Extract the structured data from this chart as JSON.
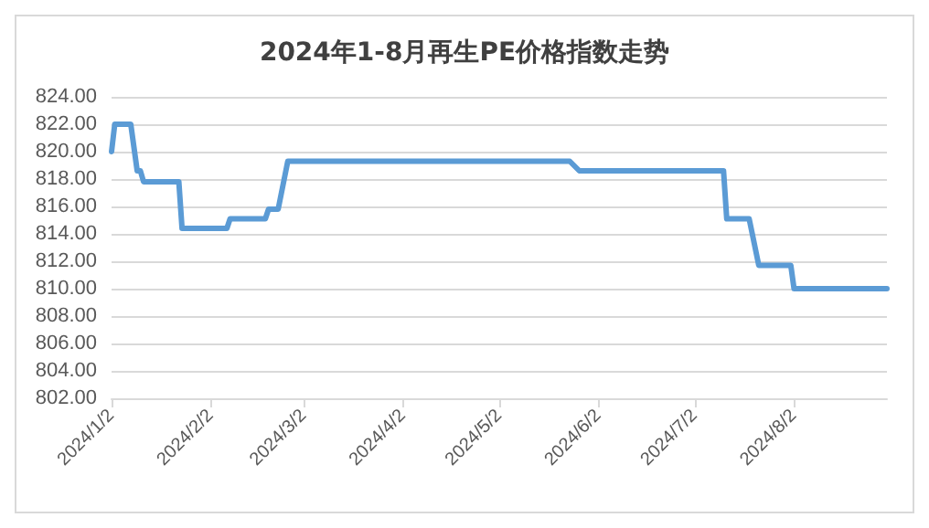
{
  "chart_data": {
    "type": "step",
    "title": "2024年1-8月再生PE价格指数走势",
    "x": [
      "2024-01-02",
      "2024-01-03",
      "2024-01-08",
      "2024-01-10",
      "2024-01-11",
      "2024-01-12",
      "2024-01-23",
      "2024-01-24",
      "2024-02-07",
      "2024-02-08",
      "2024-02-19",
      "2024-02-20",
      "2024-02-23",
      "2024-02-26",
      "2024-05-24",
      "2024-05-27",
      "2024-07-11",
      "2024-07-12",
      "2024-07-19",
      "2024-07-22",
      "2024-08-01",
      "2024-08-02",
      "2024-08-31"
    ],
    "series": [
      {
        "color": "#5b9bd5",
        "values": [
          820.0,
          822.0,
          822.0,
          818.6,
          818.6,
          817.8,
          817.8,
          814.4,
          814.4,
          815.1,
          815.1,
          815.8,
          815.8,
          819.3,
          819.3,
          818.6,
          818.6,
          815.1,
          815.1,
          811.7,
          811.7,
          810.0,
          810.0
        ]
      }
    ],
    "xlim": [
      "2024-01-02",
      "2024-08-31"
    ],
    "xticks": [
      {
        "value": "2024-01-02",
        "label": "2024/1/2"
      },
      {
        "value": "2024-02-02",
        "label": "2024/2/2"
      },
      {
        "value": "2024-03-02",
        "label": "2024/3/2"
      },
      {
        "value": "2024-04-02",
        "label": "2024/4/2"
      },
      {
        "value": "2024-05-02",
        "label": "2024/5/2"
      },
      {
        "value": "2024-06-02",
        "label": "2024/6/2"
      },
      {
        "value": "2024-07-02",
        "label": "2024/7/2"
      },
      {
        "value": "2024-08-02",
        "label": "2024/8/2"
      }
    ],
    "ylim": [
      802,
      824
    ],
    "yticks": [
      {
        "value": 802,
        "label": "802.00"
      },
      {
        "value": 804,
        "label": "804.00"
      },
      {
        "value": 806,
        "label": "806.00"
      },
      {
        "value": 808,
        "label": "808.00"
      },
      {
        "value": 810,
        "label": "810.00"
      },
      {
        "value": 812,
        "label": "812.00"
      },
      {
        "value": 814,
        "label": "814.00"
      },
      {
        "value": 816,
        "label": "816.00"
      },
      {
        "value": 818,
        "label": "818.00"
      },
      {
        "value": 820,
        "label": "820.00"
      },
      {
        "value": 822,
        "label": "822.00"
      },
      {
        "value": 824,
        "label": "824.00"
      }
    ],
    "grid": "y",
    "marker": "none",
    "line_style": "solid"
  }
}
